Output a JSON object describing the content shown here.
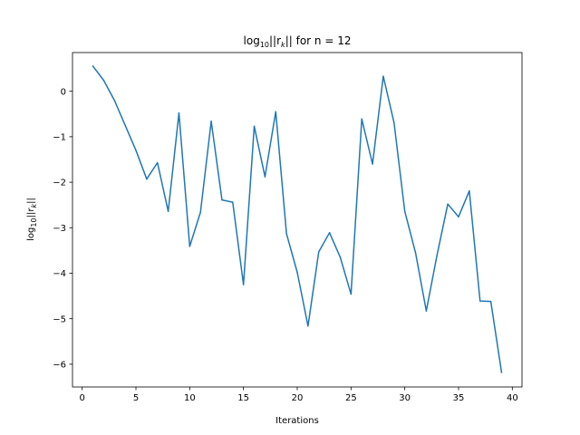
{
  "chart_data": {
    "type": "line",
    "title": {
      "main": "log",
      "sub": "10",
      "rest": "||r",
      "italic_sub": "k",
      "end": "|| for n = 12"
    },
    "xlabel": "Iterations",
    "ylabel": {
      "main": "log",
      "sub": "10",
      "rest": "||r",
      "italic_sub": "k",
      "end": "||"
    },
    "xlim": [
      -0.9,
      40.9
    ],
    "ylim": [
      -6.5,
      0.85
    ],
    "xticks": [
      0,
      5,
      10,
      15,
      20,
      25,
      30,
      35,
      40
    ],
    "yticks": [
      0,
      -1,
      -2,
      -3,
      -4,
      -5,
      -6
    ],
    "grid": false,
    "series": [
      {
        "color": "#1f77b4",
        "x": [
          1,
          2,
          3,
          4,
          5,
          6,
          7,
          8,
          9,
          10,
          11,
          12,
          13,
          14,
          15,
          16,
          17,
          18,
          19,
          20,
          21,
          22,
          23,
          24,
          25,
          26,
          27,
          28,
          29,
          30,
          31,
          32,
          33,
          34,
          35,
          36,
          37,
          38,
          39
        ],
        "y": [
          0.55,
          0.24,
          -0.2,
          -0.75,
          -1.3,
          -1.93,
          -1.57,
          -2.64,
          -0.48,
          -3.41,
          -2.66,
          -0.66,
          -2.39,
          -2.44,
          -4.25,
          -0.77,
          -1.88,
          -0.45,
          -3.13,
          -3.98,
          -5.16,
          -3.53,
          -3.11,
          -3.65,
          -4.46,
          -0.61,
          -1.6,
          0.33,
          -0.69,
          -2.64,
          -3.55,
          -4.83,
          -3.6,
          -2.48,
          -2.76,
          -2.19,
          -4.61,
          -4.62,
          -6.18
        ]
      }
    ]
  }
}
